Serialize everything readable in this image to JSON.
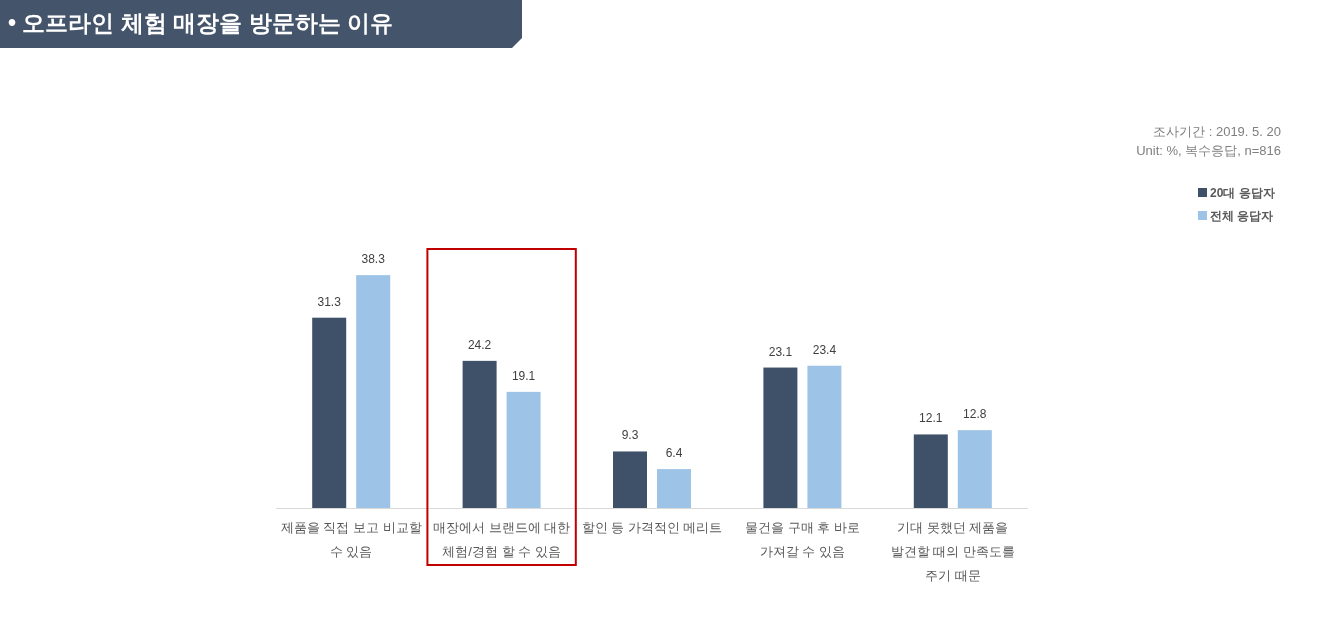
{
  "chart_data": {
    "type": "bar",
    "title": "• 오프라인 체험 매장을 방문하는 이유",
    "categories": [
      "제품을 직접 보고 비교할 수 있음",
      "매장에서 브랜드에 대한 체험/경험 할 수 있음",
      "할인 등 가격적인 메리트",
      "물건을 구매 후 바로 가져갈 수 있음",
      "기대 못했던 제품을 발견할 때의 만족도를 주기 때문"
    ],
    "series": [
      {
        "name": "20대 응답자",
        "color": "#3f5069",
        "values": [
          31.3,
          24.2,
          9.3,
          23.1,
          12.1
        ]
      },
      {
        "name": "전체 응답자",
        "color": "#9dc3e6",
        "values": [
          38.3,
          19.1,
          6.4,
          23.4,
          12.8
        ]
      }
    ],
    "data_labels": true,
    "legend": "top right",
    "annotations": [
      "조사기간 : 2019. 5. 20",
      "Unit: %, 복수응답, n=816"
    ]
  }
}
